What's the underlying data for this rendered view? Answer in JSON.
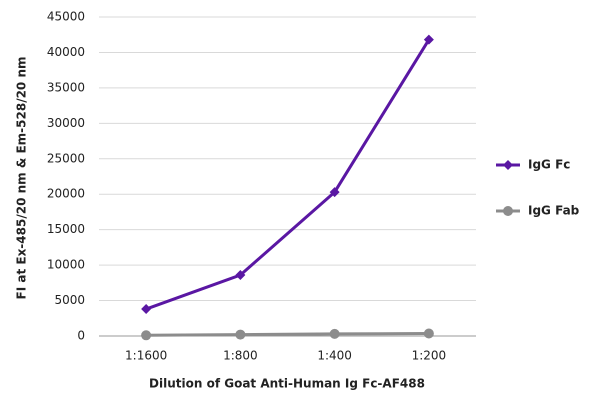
{
  "chart_data": {
    "type": "line",
    "x_label": "Dilution of Goat Anti-Human Ig Fc-AF488",
    "y_label": "FI at Ex-485/20 nm & Em-528/20 nm",
    "categories": [
      "1:1600",
      "1:800",
      "1:400",
      "1:200"
    ],
    "series": [
      {
        "name": "IgG Fc",
        "color": "#5a17a3",
        "marker": "diamond",
        "values": [
          3800,
          8600,
          20300,
          41800
        ]
      },
      {
        "name": "IgG Fab",
        "color": "#8c8c8c",
        "marker": "circle",
        "values": [
          100,
          200,
          300,
          350
        ]
      }
    ],
    "ylim": [
      0,
      45000
    ],
    "yticks": [
      0,
      5000,
      10000,
      15000,
      20000,
      25000,
      30000,
      35000,
      40000,
      45000
    ],
    "grid": true,
    "legend": "right"
  }
}
